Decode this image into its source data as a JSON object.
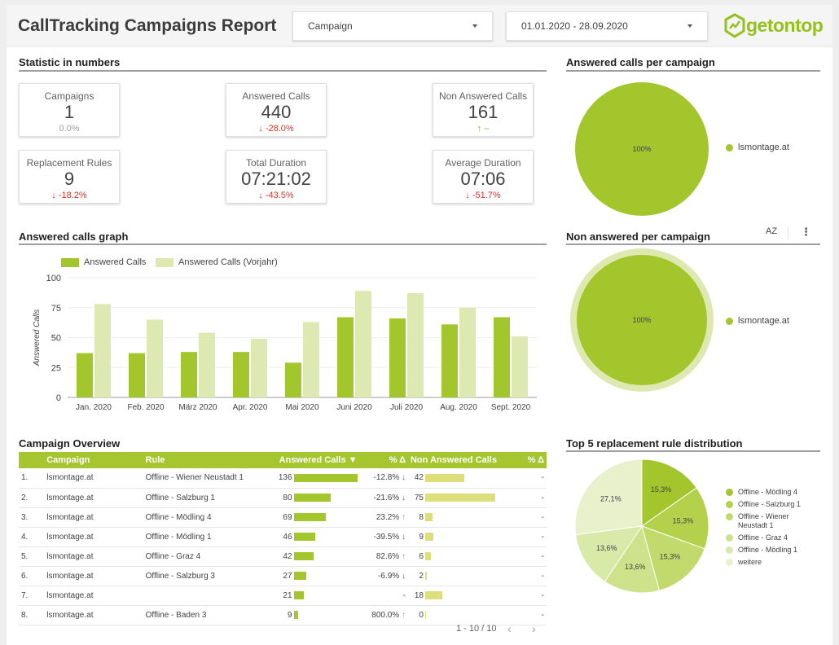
{
  "header": {
    "title": "CallTracking Campaigns Report",
    "campaign_dropdown": "Campaign",
    "date_range": "01.01.2020 - 28.09.2020",
    "logo_text": "getontop"
  },
  "stats": {
    "title": "Statistic in numbers",
    "cards": [
      {
        "label": "Campaigns",
        "value": "1",
        "change": "0.0%"
      },
      {
        "label": "Answered Calls",
        "value": "440",
        "change": "-28.0%"
      },
      {
        "label": "Non Answered Calls",
        "value": "161",
        "change": "–"
      },
      {
        "label": "Replacement Rules",
        "value": "9",
        "change": "-18.2%"
      },
      {
        "label": "Total Duration",
        "value": "07:21:02",
        "change": "-43.5%"
      },
      {
        "label": "Average Duration",
        "value": "07:06",
        "change": "-51.7%"
      }
    ]
  },
  "answered_pie": {
    "title": "Answered calls per campaign",
    "slice_label": "100%",
    "legend": "lsmontage.at"
  },
  "non_answered_pie": {
    "title": "Non answered per campaign",
    "sort_icon": "AZ",
    "slice_label": "100%",
    "legend": "lsmontage.at"
  },
  "graph": {
    "title": "Answered calls graph",
    "ylabel": "Answered Calls"
  },
  "chart_data": {
    "type": "bar",
    "categories": [
      "Jan. 2020",
      "Feb. 2020",
      "März 2020",
      "Apr. 2020",
      "Mai 2020",
      "Juni 2020",
      "Juli 2020",
      "Aug. 2020",
      "Sept. 2020"
    ],
    "series": [
      {
        "name": "Answered Calls",
        "color": "#a2c62c",
        "values": [
          37,
          37,
          38,
          38,
          29,
          67,
          66,
          61,
          67
        ]
      },
      {
        "name": "Answered Calls (Vorjahr)",
        "color": "#dde9b1",
        "values": [
          78,
          65,
          54,
          49,
          63,
          89,
          87,
          75,
          51
        ]
      }
    ],
    "yticks": [
      "0",
      "25",
      "50",
      "75",
      "100"
    ],
    "ylim": [
      0,
      100
    ],
    "ylabel": "Answered Calls"
  },
  "overview": {
    "title": "Campaign Overview",
    "columns": [
      "Campaign",
      "Rule",
      "Answered Calls ▼",
      "% Δ",
      "Non Answered Calls",
      "% Δ"
    ],
    "rows": [
      {
        "n": "1.",
        "campaign": "lsmontage.at",
        "rule": "Offline - Wiener Neustadt 1",
        "answered": "136",
        "ans_val": 136,
        "pct": "-12.8%",
        "dir": "down",
        "non": "42",
        "non_val": 42,
        "pct2": "-"
      },
      {
        "n": "2.",
        "campaign": "lsmontage.at",
        "rule": "Offline - Salzburg 1",
        "answered": "80",
        "ans_val": 80,
        "pct": "-21.6%",
        "dir": "down",
        "non": "75",
        "non_val": 75,
        "pct2": "-"
      },
      {
        "n": "3.",
        "campaign": "lsmontage.at",
        "rule": "Offline - Mödling 4",
        "answered": "69",
        "ans_val": 69,
        "pct": "23.2%",
        "dir": "up",
        "non": "8",
        "non_val": 8,
        "pct2": "-"
      },
      {
        "n": "4.",
        "campaign": "lsmontage.at",
        "rule": "Offline - Mödling 1",
        "answered": "46",
        "ans_val": 46,
        "pct": "-39.5%",
        "dir": "down",
        "non": "9",
        "non_val": 9,
        "pct2": "-"
      },
      {
        "n": "5.",
        "campaign": "lsmontage.at",
        "rule": "Offline - Graz 4",
        "answered": "42",
        "ans_val": 42,
        "pct": "82.6%",
        "dir": "up",
        "non": "6",
        "non_val": 6,
        "pct2": "-"
      },
      {
        "n": "6.",
        "campaign": "lsmontage.at",
        "rule": "Offline - Salzburg 3",
        "answered": "27",
        "ans_val": 27,
        "pct": "-6.9%",
        "dir": "down",
        "non": "2",
        "non_val": 2,
        "pct2": "-"
      },
      {
        "n": "7.",
        "campaign": "lsmontage.at",
        "rule": "",
        "answered": "21",
        "ans_val": 21,
        "pct": "-",
        "dir": "",
        "non": "18",
        "non_val": 18,
        "pct2": "-"
      },
      {
        "n": "8.",
        "campaign": "lsmontage.at",
        "rule": "Offline - Baden 3",
        "answered": "9",
        "ans_val": 9,
        "pct": "800.0%",
        "dir": "up",
        "non": "0",
        "non_val": 0,
        "pct2": "-"
      }
    ],
    "pager": "1 - 10 / 10"
  },
  "top5": {
    "title": "Top 5 replacement rule distribution",
    "slices": [
      {
        "name": "Offline - Mödling 4",
        "value": 15.3,
        "label": "15,3%",
        "color": "#a2c62c"
      },
      {
        "name": "Offline - Salzburg 1",
        "value": 15.3,
        "label": "15,3%",
        "color": "#b3d14b"
      },
      {
        "name": "Offline - Wiener Neustadt 1",
        "value": 15.3,
        "label": "15,3%",
        "color": "#c2d96c"
      },
      {
        "name": "Offline - Graz 4",
        "value": 13.6,
        "label": "13,6%",
        "color": "#cde28a"
      },
      {
        "name": "Offline - Mödling 1",
        "value": 13.6,
        "label": "13,6%",
        "color": "#d9e9a7"
      },
      {
        "name": "weitere",
        "value": 27.1,
        "label": "27,1%",
        "color": "#e8f1cc"
      }
    ],
    "legend": [
      {
        "line1": "Offline - Mödling 4",
        "line2": ""
      },
      {
        "line1": "Offline - Salzburg 1",
        "line2": ""
      },
      {
        "line1": "Offline - Wiener",
        "line2": "Neustadt 1"
      },
      {
        "line1": "Offline - Graz 4",
        "line2": ""
      },
      {
        "line1": "Offline - Mödling 1",
        "line2": ""
      },
      {
        "line1": "weitere",
        "line2": ""
      }
    ]
  }
}
